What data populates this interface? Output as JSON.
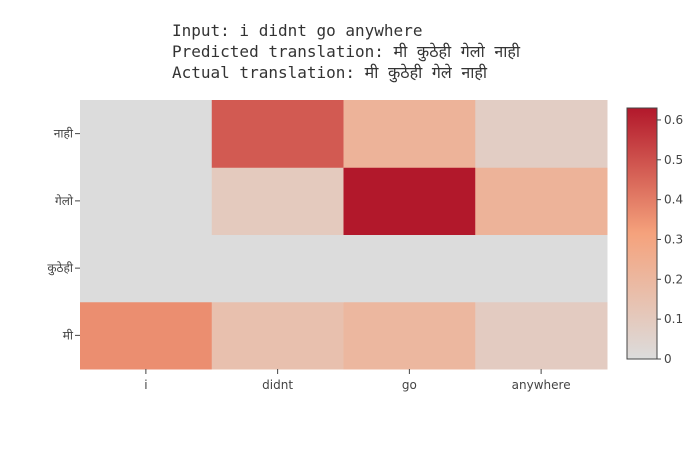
{
  "title_lines": [
    "Input: i didnt go anywhere",
    "Predicted translation: मी कुठेही गेलो नाही",
    "Actual translation: मी कुठेही गेले नाही"
  ],
  "chart_data": {
    "type": "heatmap",
    "x": [
      "i",
      "didnt",
      "go",
      "anywhere"
    ],
    "y": [
      "मी",
      "कुठेही",
      "गेलो",
      "नाही"
    ],
    "z": [
      [
        0.36,
        0.15,
        0.2,
        0.09
      ],
      [
        0.0,
        0.0,
        0.0,
        0.0
      ],
      [
        0.0,
        0.1,
        0.63,
        0.22
      ],
      [
        0.0,
        0.48,
        0.22,
        0.08
      ]
    ],
    "zlim": [
      0,
      0.63
    ],
    "colorscale": [
      "#dcdcdc",
      "#f5a27c",
      "#b2182b"
    ],
    "colorbar_ticks": [
      0,
      0.1,
      0.2,
      0.3,
      0.4,
      0.5,
      0.6
    ],
    "colorbar_tick_labels": [
      "0",
      "0.1",
      "0.2",
      "0.3",
      "0.4",
      "0.5",
      "0.6"
    ]
  }
}
